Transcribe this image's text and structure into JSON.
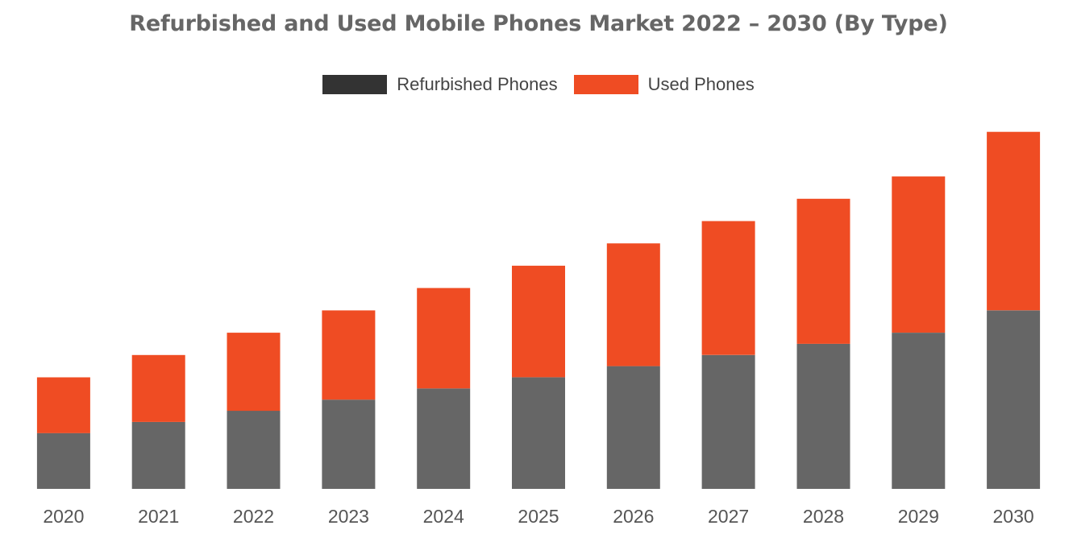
{
  "chart_data": {
    "type": "bar",
    "stacked": true,
    "title": "Refurbished and Used Mobile Phones Market 2022 – 2030 (By Type)",
    "xlabel": "",
    "ylabel": "",
    "categories": [
      "2020",
      "2021",
      "2022",
      "2023",
      "2024",
      "2025",
      "2026",
      "2027",
      "2028",
      "2029",
      "2030"
    ],
    "series": [
      {
        "name": "Refurbished Phones",
        "color": "#666666",
        "values": [
          5.0,
          6.0,
          7.0,
          8.0,
          9.0,
          10.0,
          11.0,
          12.0,
          13.0,
          14.0,
          16.0
        ]
      },
      {
        "name": "Used Phones",
        "color": "#ef4c23",
        "values": [
          5.0,
          6.0,
          7.0,
          8.0,
          9.0,
          10.0,
          11.0,
          12.0,
          13.0,
          14.0,
          16.0
        ]
      }
    ],
    "ylim": [
      0,
      34
    ],
    "grid": false,
    "legend_position": "top-center",
    "legend_swatch_colors": [
      "#333333",
      "#ef4c23"
    ]
  }
}
